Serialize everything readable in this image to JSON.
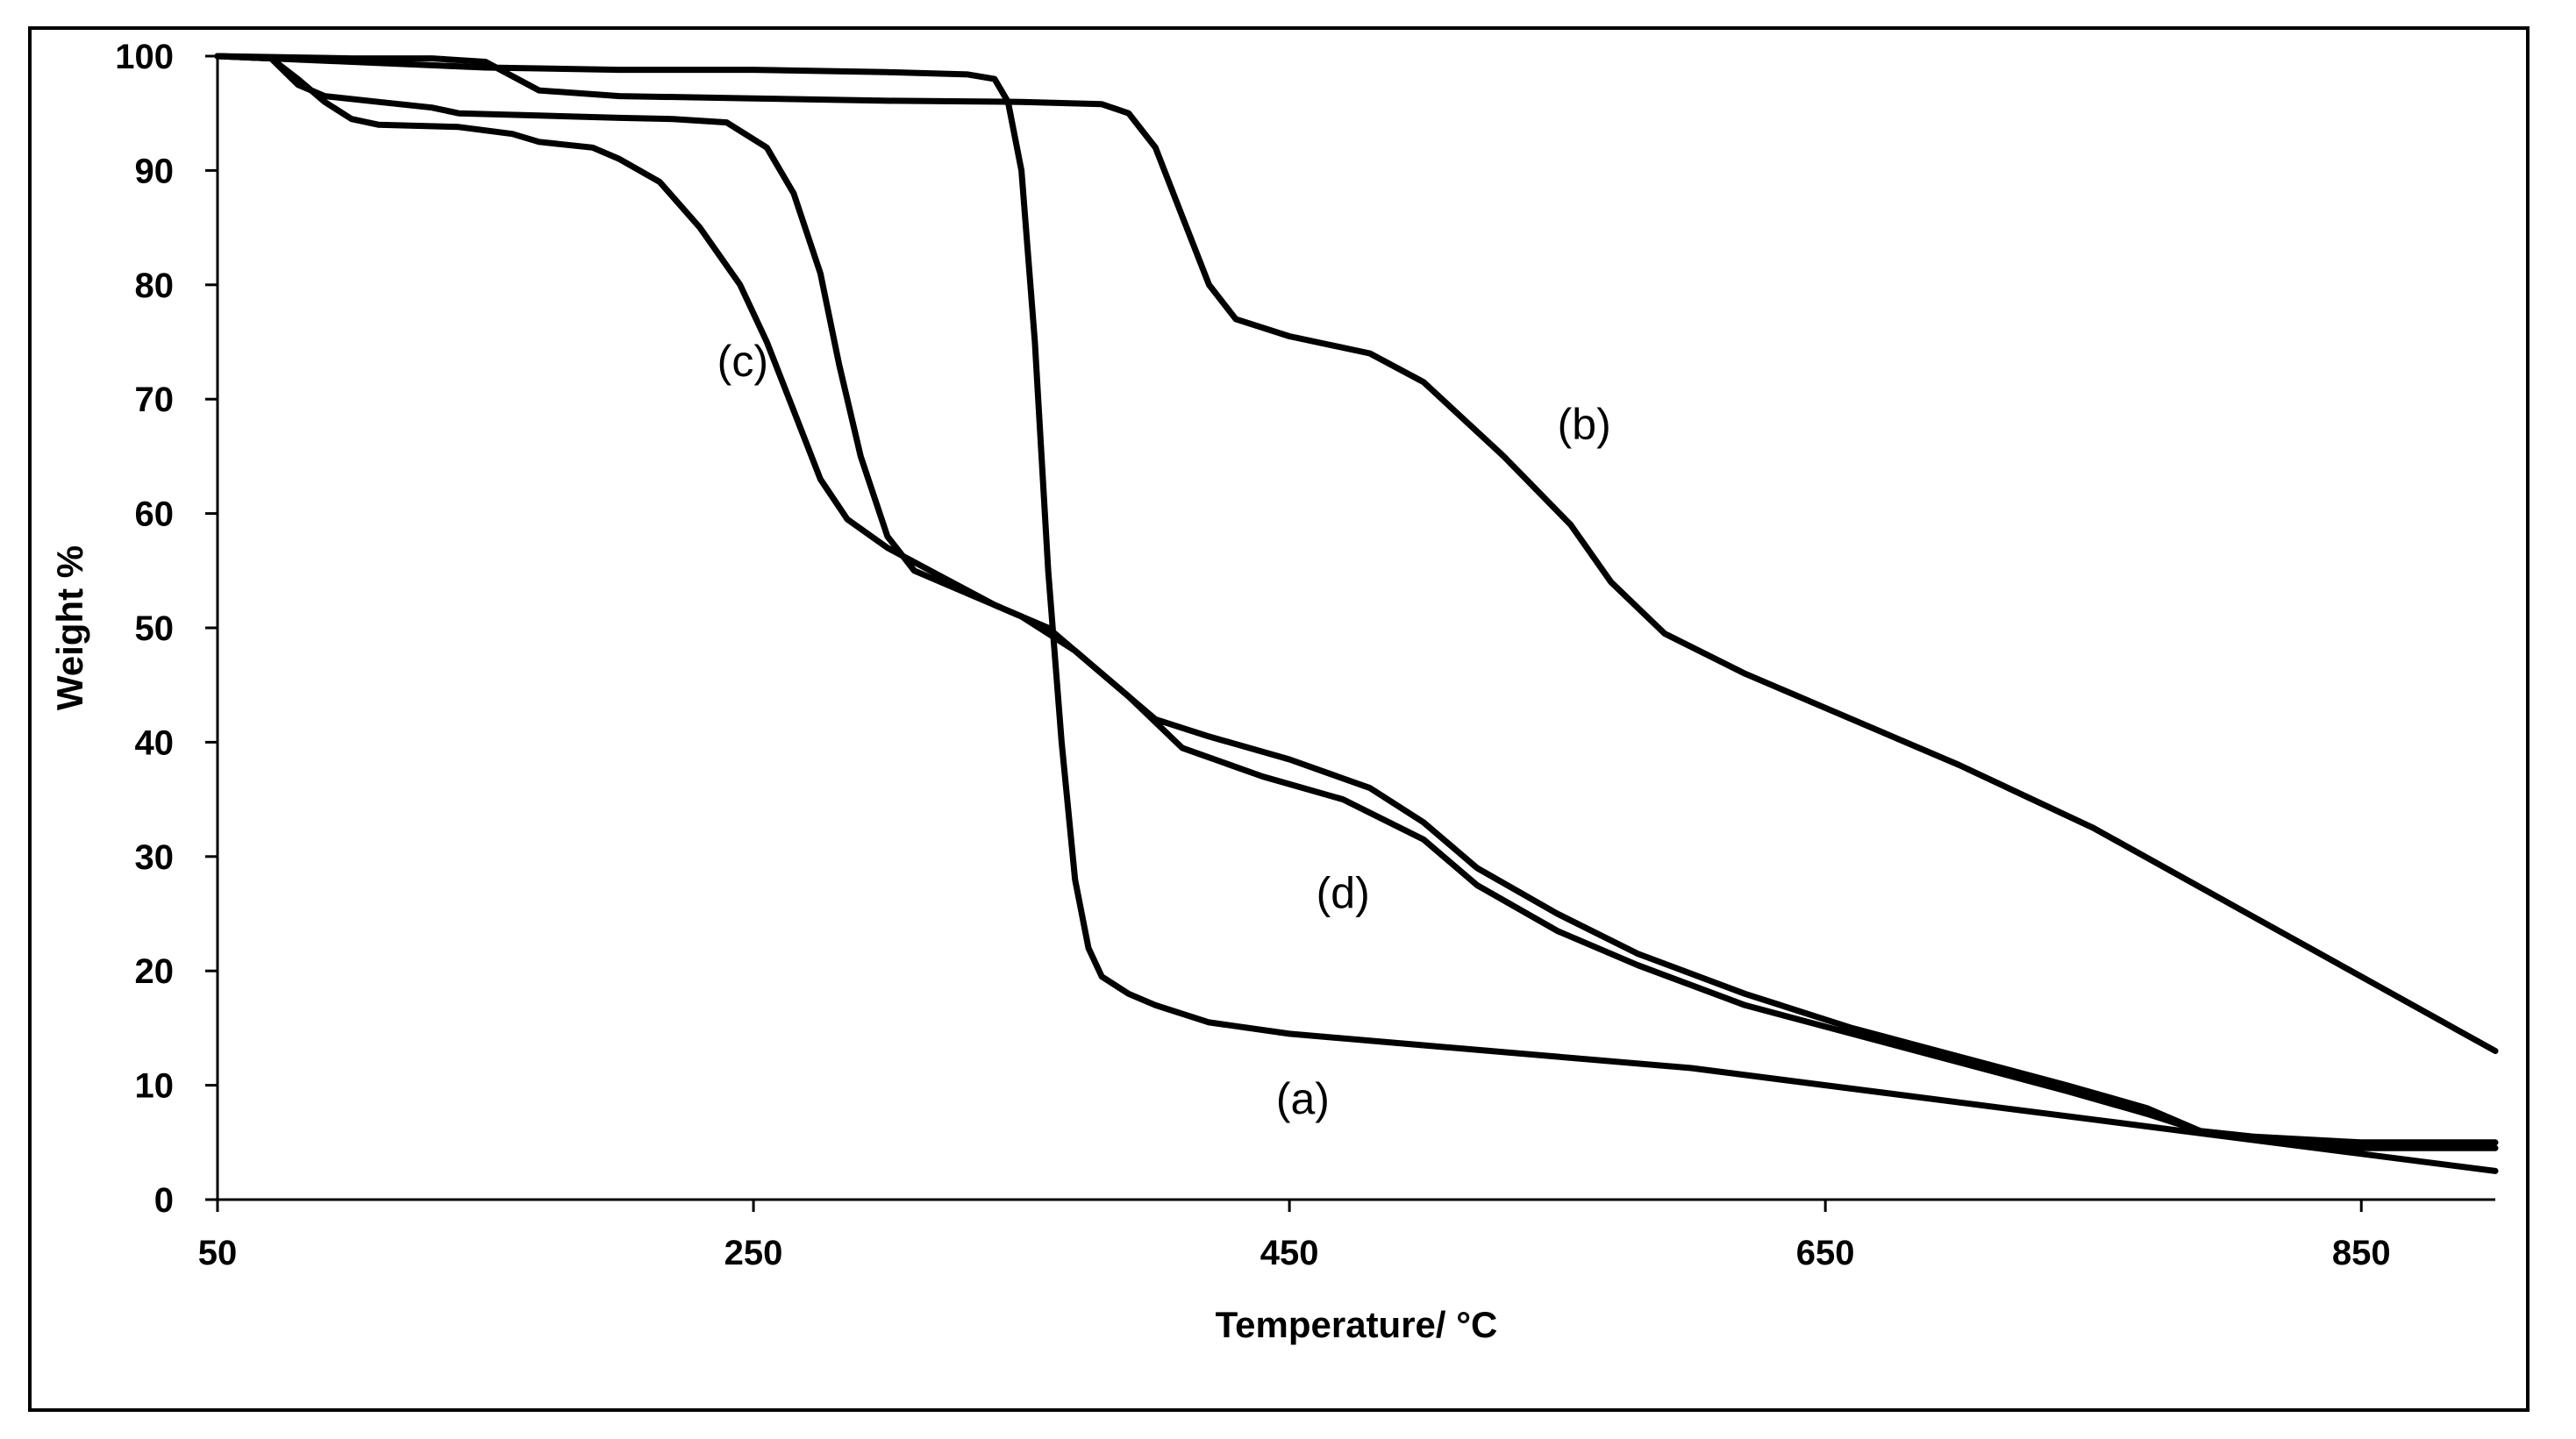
{
  "chart_data": {
    "type": "line",
    "title": "",
    "xlabel": "Temperature/ °C",
    "ylabel": "Weight %",
    "xlim": [
      50,
      900
    ],
    "ylim": [
      0,
      100
    ],
    "x_ticks": [
      50,
      250,
      450,
      650,
      850
    ],
    "y_ticks": [
      0,
      10,
      20,
      30,
      40,
      50,
      60,
      70,
      80,
      90,
      100
    ],
    "grid": false,
    "legend": "none",
    "series": [
      {
        "name": "(a)",
        "color": "#000000",
        "label_at": [
          455,
          7.5
        ],
        "points": [
          [
            50,
            100
          ],
          [
            100,
            99.5
          ],
          [
            150,
            99
          ],
          [
            200,
            98.8
          ],
          [
            250,
            98.8
          ],
          [
            300,
            98.6
          ],
          [
            330,
            98.4
          ],
          [
            340,
            98
          ],
          [
            345,
            96
          ],
          [
            350,
            90
          ],
          [
            355,
            75
          ],
          [
            360,
            55
          ],
          [
            365,
            40
          ],
          [
            370,
            28
          ],
          [
            375,
            22
          ],
          [
            380,
            19.5
          ],
          [
            390,
            18
          ],
          [
            400,
            17
          ],
          [
            420,
            15.5
          ],
          [
            450,
            14.5
          ],
          [
            500,
            13.5
          ],
          [
            550,
            12.5
          ],
          [
            600,
            11.5
          ],
          [
            650,
            10
          ],
          [
            700,
            8.5
          ],
          [
            750,
            7
          ],
          [
            800,
            5.5
          ],
          [
            850,
            4
          ],
          [
            900,
            2.5
          ]
        ]
      },
      {
        "name": "(b)",
        "color": "#000000",
        "label_at": [
          560,
          66.5
        ],
        "points": [
          [
            50,
            100
          ],
          [
            100,
            99.8
          ],
          [
            130,
            99.8
          ],
          [
            150,
            99.5
          ],
          [
            170,
            97
          ],
          [
            200,
            96.5
          ],
          [
            250,
            96.3
          ],
          [
            300,
            96.1
          ],
          [
            350,
            96
          ],
          [
            380,
            95.8
          ],
          [
            390,
            95
          ],
          [
            400,
            92
          ],
          [
            410,
            86
          ],
          [
            420,
            80
          ],
          [
            430,
            77
          ],
          [
            450,
            75.5
          ],
          [
            480,
            74
          ],
          [
            500,
            71.5
          ],
          [
            530,
            65
          ],
          [
            555,
            59
          ],
          [
            570,
            54
          ],
          [
            590,
            49.5
          ],
          [
            620,
            46
          ],
          [
            650,
            43
          ],
          [
            700,
            38
          ],
          [
            750,
            32.5
          ],
          [
            800,
            26
          ],
          [
            850,
            19.5
          ],
          [
            900,
            13
          ]
        ]
      },
      {
        "name": "(c)",
        "color": "#000000",
        "label_at": [
          246,
          72
        ],
        "points": [
          [
            50,
            100
          ],
          [
            70,
            99.8
          ],
          [
            80,
            98
          ],
          [
            90,
            96
          ],
          [
            100,
            94.5
          ],
          [
            110,
            94
          ],
          [
            140,
            93.8
          ],
          [
            160,
            93.2
          ],
          [
            170,
            92.5
          ],
          [
            190,
            92
          ],
          [
            200,
            91
          ],
          [
            215,
            89
          ],
          [
            230,
            85
          ],
          [
            245,
            80
          ],
          [
            255,
            75
          ],
          [
            265,
            69
          ],
          [
            275,
            63
          ],
          [
            285,
            59.5
          ],
          [
            300,
            57
          ],
          [
            320,
            54.5
          ],
          [
            340,
            52
          ],
          [
            360,
            50
          ],
          [
            380,
            46
          ],
          [
            400,
            42
          ],
          [
            420,
            40.5
          ],
          [
            450,
            38.5
          ],
          [
            480,
            36
          ],
          [
            500,
            33
          ],
          [
            520,
            29
          ],
          [
            550,
            25
          ],
          [
            580,
            21.5
          ],
          [
            620,
            18
          ],
          [
            660,
            15
          ],
          [
            700,
            12.5
          ],
          [
            740,
            10
          ],
          [
            770,
            8
          ],
          [
            790,
            6
          ],
          [
            810,
            5.5
          ],
          [
            850,
            5
          ],
          [
            900,
            5
          ]
        ]
      },
      {
        "name": "(d)",
        "color": "#000000",
        "label_at": [
          470,
          25.5
        ],
        "points": [
          [
            50,
            100
          ],
          [
            70,
            99.8
          ],
          [
            80,
            97.5
          ],
          [
            90,
            96.5
          ],
          [
            110,
            96
          ],
          [
            130,
            95.5
          ],
          [
            140,
            95
          ],
          [
            170,
            94.8
          ],
          [
            200,
            94.6
          ],
          [
            220,
            94.5
          ],
          [
            240,
            94.2
          ],
          [
            255,
            92
          ],
          [
            265,
            88
          ],
          [
            275,
            81
          ],
          [
            282,
            73
          ],
          [
            290,
            65
          ],
          [
            300,
            58
          ],
          [
            310,
            55
          ],
          [
            330,
            53
          ],
          [
            350,
            51
          ],
          [
            370,
            48
          ],
          [
            390,
            44
          ],
          [
            410,
            39.5
          ],
          [
            440,
            37
          ],
          [
            470,
            35
          ],
          [
            500,
            31.5
          ],
          [
            520,
            27.5
          ],
          [
            550,
            23.5
          ],
          [
            580,
            20.5
          ],
          [
            620,
            17
          ],
          [
            660,
            14.5
          ],
          [
            700,
            12
          ],
          [
            740,
            9.5
          ],
          [
            770,
            7.5
          ],
          [
            790,
            6
          ],
          [
            810,
            5.5
          ],
          [
            850,
            4.5
          ],
          [
            900,
            4.5
          ]
        ]
      }
    ]
  }
}
